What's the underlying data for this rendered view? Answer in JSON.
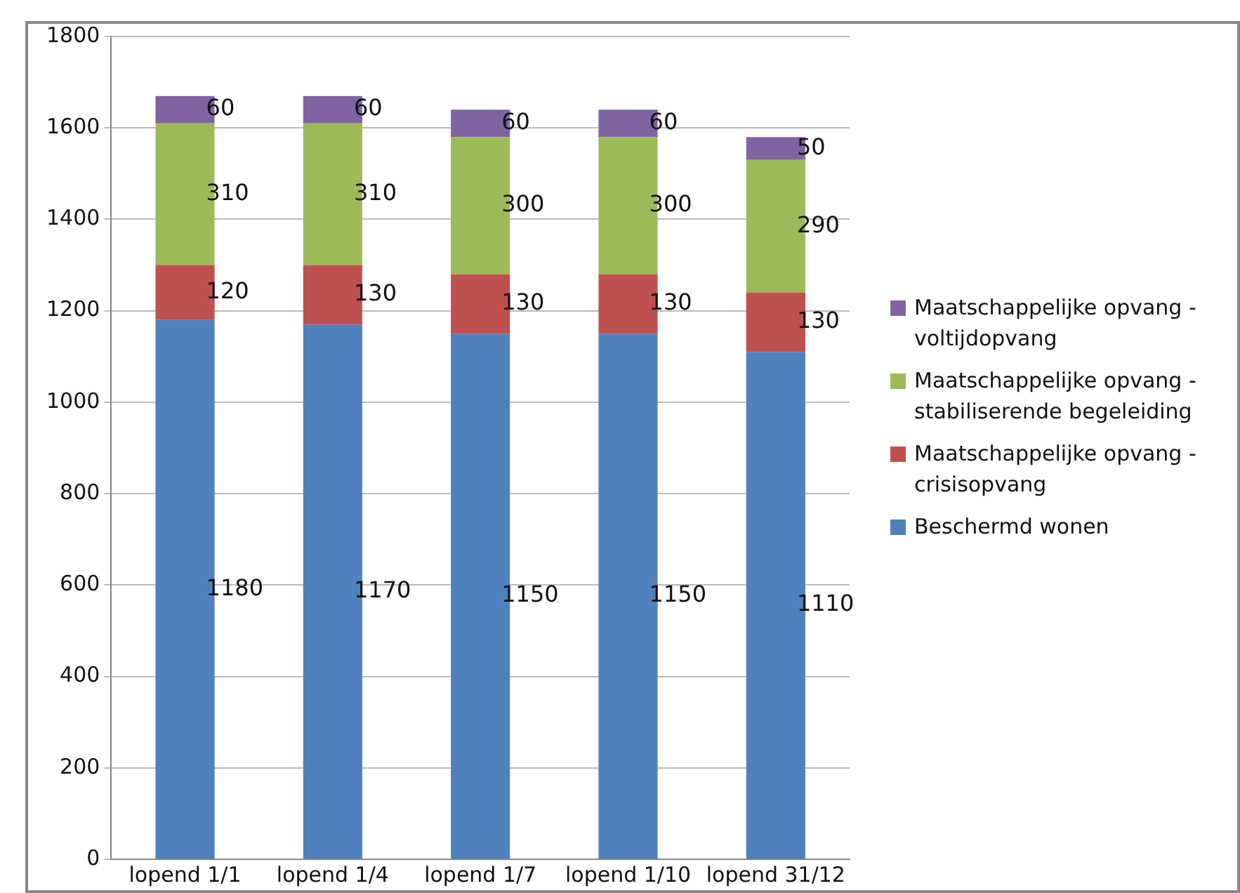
{
  "chart_data": {
    "type": "bar",
    "stacked": true,
    "categories": [
      "lopend 1/1",
      "lopend 1/4",
      "lopend 1/7",
      "lopend 1/10",
      "lopend 31/12"
    ],
    "series": [
      {
        "name": "Beschermd wonen",
        "color": "#4f81bd",
        "values": [
          1180,
          1170,
          1150,
          1150,
          1110
        ]
      },
      {
        "name": "Maatschappelijke opvang - crisisopvang",
        "color": "#c0504d",
        "values": [
          120,
          130,
          130,
          130,
          130
        ]
      },
      {
        "name": "Maatschappelijke opvang - stabiliserende begeleiding",
        "color": "#9bbb59",
        "values": [
          310,
          310,
          300,
          300,
          290
        ]
      },
      {
        "name": "Maatschappelijke opvang - voltijdopvang",
        "color": "#8064a2",
        "values": [
          60,
          60,
          60,
          60,
          50
        ]
      }
    ],
    "ylim": [
      0,
      1800
    ],
    "yticks": [
      0,
      200,
      400,
      600,
      800,
      1000,
      1200,
      1400,
      1600,
      1800
    ],
    "grid": "y",
    "legend": "right",
    "data_labels": true
  }
}
